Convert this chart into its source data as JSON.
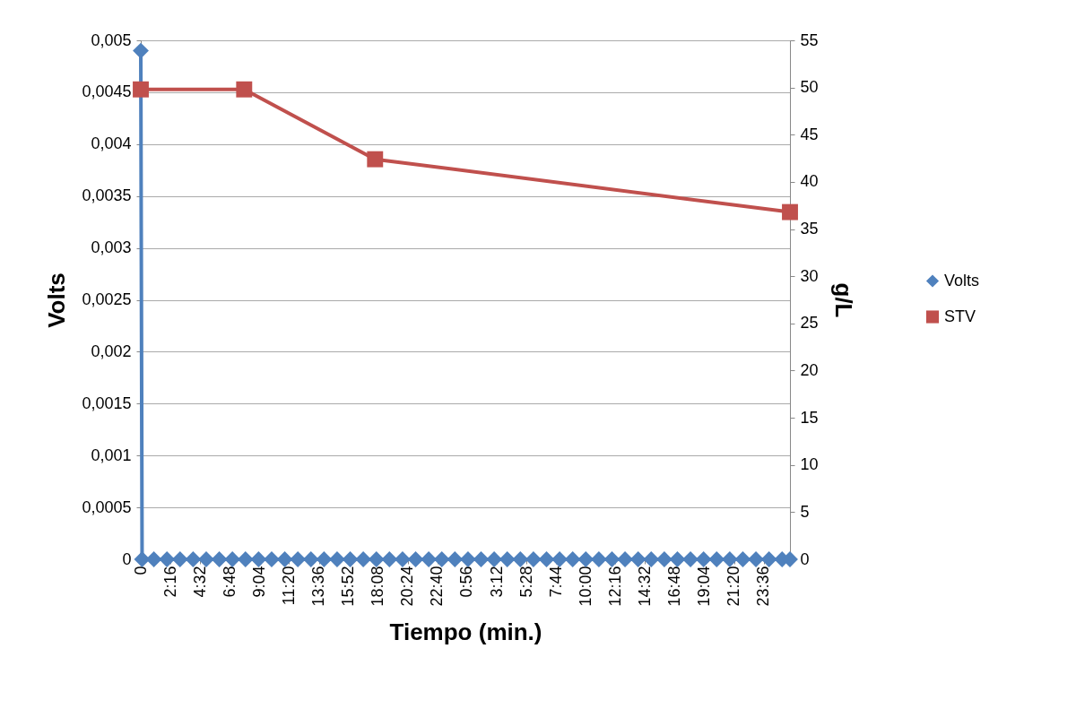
{
  "chart_data": {
    "type": "line",
    "xlabel": "Tiempo (min.)",
    "ylabel": "Volts",
    "y2label": "g/L",
    "xlim": [
      "--01-01T00:00",
      "--01-03T01:36"
    ],
    "xticks": [
      {
        "value": "--01-01T00:00",
        "label": "0"
      },
      {
        "value": "--01-01T02:16",
        "label": "2:16"
      },
      {
        "value": "--01-01T04:32",
        "label": "4:32"
      },
      {
        "value": "--01-01T06:48",
        "label": "6:48"
      },
      {
        "value": "--01-01T09:04",
        "label": "9:04"
      },
      {
        "value": "--01-01T11:20",
        "label": "11:20"
      },
      {
        "value": "--01-01T13:36",
        "label": "13:36"
      },
      {
        "value": "--01-01T15:52",
        "label": "15:52"
      },
      {
        "value": "--01-01T18:08",
        "label": "18:08"
      },
      {
        "value": "--01-01T20:24",
        "label": "20:24"
      },
      {
        "value": "--01-01T22:40",
        "label": "22:40"
      },
      {
        "value": "--01-02T00:56",
        "label": "0:56"
      },
      {
        "value": "--01-02T03:12",
        "label": "3:12"
      },
      {
        "value": "--01-02T05:28",
        "label": "5:28"
      },
      {
        "value": "--01-02T07:44",
        "label": "7:44"
      },
      {
        "value": "--01-02T10:00",
        "label": "10:00"
      },
      {
        "value": "--01-02T12:16",
        "label": "12:16"
      },
      {
        "value": "--01-02T14:32",
        "label": "14:32"
      },
      {
        "value": "--01-02T16:48",
        "label": "16:48"
      },
      {
        "value": "--01-02T19:04",
        "label": "19:04"
      },
      {
        "value": "--01-02T21:20",
        "label": "21:20"
      },
      {
        "value": "--01-02T23:36",
        "label": "23:36"
      }
    ],
    "ylim": [
      0,
      0.005
    ],
    "yticks": [
      0,
      {
        "value": 0.0005,
        "label": "0,0005"
      },
      {
        "value": 0.001,
        "label": "0,001"
      },
      {
        "value": 0.0015,
        "label": "0,0015"
      },
      {
        "value": 0.002,
        "label": "0,002"
      },
      {
        "value": 0.0025,
        "label": "0,0025"
      },
      {
        "value": 0.003,
        "label": "0,003"
      },
      {
        "value": 0.0035,
        "label": "0,0035"
      },
      {
        "value": 0.004,
        "label": "0,004"
      },
      {
        "value": 0.0045,
        "label": "0,0045"
      },
      {
        "value": 0.005,
        "label": "0,005"
      }
    ],
    "y2lim": [
      0,
      55
    ],
    "y2ticks": [
      0,
      5,
      10,
      15,
      20,
      25,
      30,
      35,
      40,
      45,
      50,
      55
    ],
    "grid": "y",
    "legend": "right",
    "series": [
      {
        "name": "Volts",
        "color": "#4f81bd",
        "marker": "diamond",
        "x": [
          "--01-01T00:00",
          "--01-01T00:06",
          "--01-01T01:00",
          "--01-01T02:00",
          "--01-01T03:00",
          "--01-01T04:00",
          "--01-01T05:00",
          "--01-01T06:00",
          "--01-01T07:00",
          "--01-01T08:00",
          "--01-01T09:00",
          "--01-01T10:00",
          "--01-01T11:00",
          "--01-01T12:00",
          "--01-01T13:00",
          "--01-01T14:00",
          "--01-01T15:00",
          "--01-01T16:00",
          "--01-01T17:00",
          "--01-01T18:00",
          "--01-01T19:00",
          "--01-01T20:00",
          "--01-01T21:00",
          "--01-01T22:00",
          "--01-01T23:00",
          "--01-02T00:00",
          "--01-02T01:00",
          "--01-02T02:00",
          "--01-02T03:00",
          "--01-02T04:00",
          "--01-02T05:00",
          "--01-02T06:00",
          "--01-02T07:00",
          "--01-02T08:00",
          "--01-02T09:00",
          "--01-02T10:00",
          "--01-02T11:00",
          "--01-02T12:00",
          "--01-02T13:00",
          "--01-02T14:00",
          "--01-02T15:00",
          "--01-02T16:00",
          "--01-02T17:00",
          "--01-02T18:00",
          "--01-02T19:00",
          "--01-02T20:00",
          "--01-02T21:00",
          "--01-02T22:00",
          "--01-02T23:00",
          "--01-03T00:00",
          "--01-03T01:00",
          "--01-03T01:36"
        ],
        "values": [
          0.0049,
          0,
          0,
          0,
          0,
          0,
          0,
          0,
          0,
          0,
          0,
          0,
          0,
          0,
          0,
          0,
          0,
          0,
          0,
          0,
          0,
          0,
          0,
          0,
          0,
          0,
          0,
          0,
          0,
          0,
          0,
          0,
          0,
          0,
          0,
          0,
          0,
          0,
          0,
          0,
          0,
          0,
          0,
          0,
          0,
          0,
          0,
          0,
          0,
          0,
          0,
          0
        ]
      },
      {
        "name": "STV",
        "color": "#c0504d",
        "marker": "square",
        "axis": "y2",
        "x": [
          "--01-01T00:00",
          "--01-01T07:54",
          "--01-01T17:54",
          "--01-03T01:36"
        ],
        "values": [
          49.8,
          49.8,
          42.4,
          36.8
        ]
      }
    ]
  }
}
